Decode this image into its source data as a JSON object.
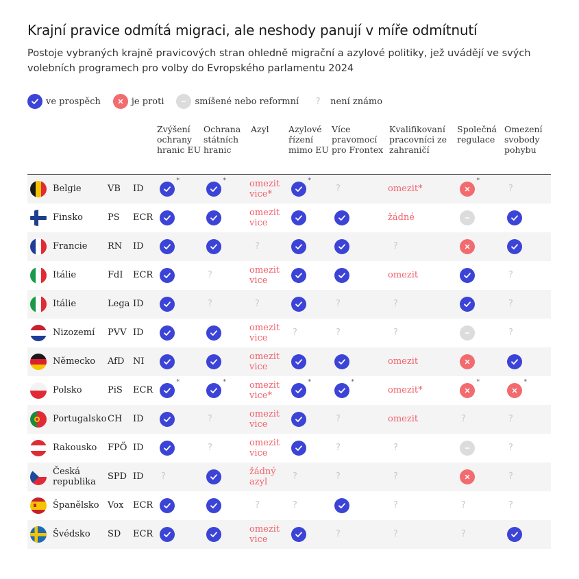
{
  "title": "Krajní pravice odmítá migraci, ale neshody panují v míře odmítnutí",
  "subtitle": "Postoje vybraných krajně pravicových stran ohledně migrační a azylové politiky, jež uvádějí ve svých volebních programech pro volby do Evropského parlamentu 2024",
  "legend": {
    "yes": "ve prospěch",
    "no": "je proti",
    "mixed": "smíšené nebo reformní",
    "unknown_symbol": "?",
    "unknown": "není známo"
  },
  "columns": [
    "Zvýšení ochrany hranic EU",
    "Ochrana státních hranic",
    "Azyl",
    "Azylové řízení mimo EU",
    "Více pravomocí pro Frontex",
    "Kvalifikovaní pracovníci ze zahraničí",
    "Společná regulace",
    "Omezení svobody pohybu"
  ],
  "colors": {
    "yes": "#3b44d6",
    "no": "#f16b6f",
    "mixed": "#dcdcdc",
    "red_text": "#f0616a"
  },
  "rows": [
    {
      "country": "Belgie",
      "flag": "be",
      "party": "VB",
      "group": "ID",
      "cells": [
        {
          "t": "yes",
          "star": true
        },
        {
          "t": "yes",
          "star": true
        },
        {
          "t": "text",
          "v": "omezit vice*"
        },
        {
          "t": "yes",
          "star": true
        },
        {
          "t": "unk"
        },
        {
          "t": "text",
          "v": "omezit*"
        },
        {
          "t": "no",
          "star": true
        },
        {
          "t": "unk"
        }
      ]
    },
    {
      "country": "Finsko",
      "flag": "fi",
      "party": "PS",
      "group": "ECR",
      "cells": [
        {
          "t": "yes"
        },
        {
          "t": "yes"
        },
        {
          "t": "text",
          "v": "omezit vice"
        },
        {
          "t": "yes"
        },
        {
          "t": "yes"
        },
        {
          "t": "text",
          "v": "žádné"
        },
        {
          "t": "mixed"
        },
        {
          "t": "yes"
        }
      ]
    },
    {
      "country": "Francie",
      "flag": "fr",
      "party": "RN",
      "group": "ID",
      "cells": [
        {
          "t": "yes"
        },
        {
          "t": "yes"
        },
        {
          "t": "unk"
        },
        {
          "t": "yes"
        },
        {
          "t": "yes"
        },
        {
          "t": "unk"
        },
        {
          "t": "no"
        },
        {
          "t": "yes"
        }
      ]
    },
    {
      "country": "Itálie",
      "flag": "it",
      "party": "FdI",
      "group": "ECR",
      "cells": [
        {
          "t": "yes"
        },
        {
          "t": "unk"
        },
        {
          "t": "text",
          "v": "omezit vice"
        },
        {
          "t": "yes"
        },
        {
          "t": "yes"
        },
        {
          "t": "text",
          "v": "omezit"
        },
        {
          "t": "yes"
        },
        {
          "t": "unk"
        }
      ]
    },
    {
      "country": "Itálie",
      "flag": "it",
      "party": "Lega",
      "group": "ID",
      "cells": [
        {
          "t": "yes"
        },
        {
          "t": "unk"
        },
        {
          "t": "unk"
        },
        {
          "t": "yes"
        },
        {
          "t": "unk"
        },
        {
          "t": "unk"
        },
        {
          "t": "yes"
        },
        {
          "t": "unk"
        }
      ]
    },
    {
      "country": "Nizozemí",
      "flag": "nl",
      "party": "PVV",
      "group": "ID",
      "cells": [
        {
          "t": "yes"
        },
        {
          "t": "yes"
        },
        {
          "t": "text",
          "v": "omezit vice"
        },
        {
          "t": "unk"
        },
        {
          "t": "unk"
        },
        {
          "t": "unk"
        },
        {
          "t": "mixed"
        },
        {
          "t": "unk"
        }
      ]
    },
    {
      "country": "Německo",
      "flag": "de",
      "party": "AfD",
      "group": "NI",
      "cells": [
        {
          "t": "yes"
        },
        {
          "t": "yes"
        },
        {
          "t": "text",
          "v": "omezit vice"
        },
        {
          "t": "yes"
        },
        {
          "t": "yes"
        },
        {
          "t": "text",
          "v": "omezit"
        },
        {
          "t": "no"
        },
        {
          "t": "yes"
        }
      ]
    },
    {
      "country": "Polsko",
      "flag": "pl",
      "party": "PiS",
      "group": "ECR",
      "cells": [
        {
          "t": "yes",
          "star": true
        },
        {
          "t": "yes",
          "star": true
        },
        {
          "t": "text",
          "v": "omezit vice*"
        },
        {
          "t": "yes",
          "star": true
        },
        {
          "t": "yes",
          "star": true
        },
        {
          "t": "text",
          "v": "omezit*"
        },
        {
          "t": "no",
          "star": true
        },
        {
          "t": "no",
          "star": true
        }
      ]
    },
    {
      "country": "Portugalsko",
      "flag": "pt",
      "party": "CH",
      "group": "ID",
      "cells": [
        {
          "t": "yes"
        },
        {
          "t": "unk"
        },
        {
          "t": "text",
          "v": "omezit vice"
        },
        {
          "t": "yes"
        },
        {
          "t": "unk"
        },
        {
          "t": "text",
          "v": "omezit"
        },
        {
          "t": "unk"
        },
        {
          "t": "unk"
        }
      ]
    },
    {
      "country": "Rakousko",
      "flag": "at",
      "party": "FPÖ",
      "group": "ID",
      "cells": [
        {
          "t": "yes"
        },
        {
          "t": "unk"
        },
        {
          "t": "text",
          "v": "omezit vice"
        },
        {
          "t": "yes"
        },
        {
          "t": "unk"
        },
        {
          "t": "unk"
        },
        {
          "t": "mixed"
        },
        {
          "t": "unk"
        }
      ]
    },
    {
      "country": "Česká republika",
      "flag": "cz",
      "party": "SPD",
      "group": "ID",
      "cells": [
        {
          "t": "unk"
        },
        {
          "t": "yes"
        },
        {
          "t": "text",
          "v": "žádný azyl"
        },
        {
          "t": "unk"
        },
        {
          "t": "unk"
        },
        {
          "t": "unk"
        },
        {
          "t": "no"
        },
        {
          "t": "unk"
        }
      ]
    },
    {
      "country": "Španělsko",
      "flag": "es",
      "party": "Vox",
      "group": "ECR",
      "cells": [
        {
          "t": "yes"
        },
        {
          "t": "yes"
        },
        {
          "t": "unk"
        },
        {
          "t": "unk"
        },
        {
          "t": "yes"
        },
        {
          "t": "unk"
        },
        {
          "t": "unk"
        },
        {
          "t": "unk"
        }
      ]
    },
    {
      "country": "Švédsko",
      "flag": "se",
      "party": "SD",
      "group": "ECR",
      "cells": [
        {
          "t": "yes"
        },
        {
          "t": "yes"
        },
        {
          "t": "text",
          "v": "omezit vice"
        },
        {
          "t": "yes"
        },
        {
          "t": "unk"
        },
        {
          "t": "unk"
        },
        {
          "t": "unk"
        },
        {
          "t": "yes"
        }
      ]
    }
  ]
}
